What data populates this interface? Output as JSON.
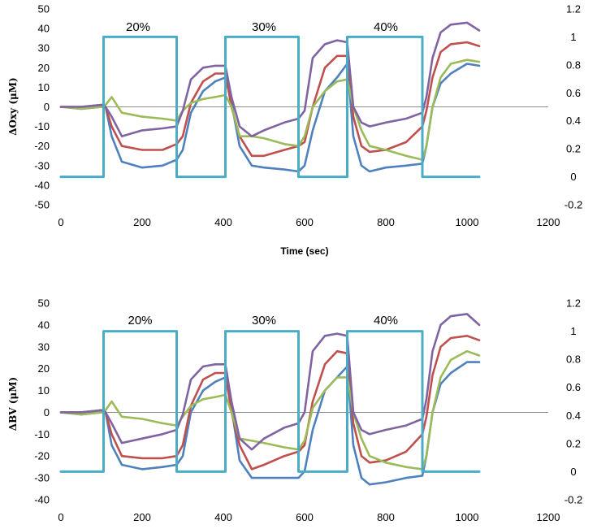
{
  "chart_data": [
    {
      "type": "line",
      "ylabel": "ΔOxy (μM)",
      "xlabel": "Time (sec)",
      "xlim": [
        0,
        1200
      ],
      "xticks": [
        0,
        200,
        400,
        600,
        800,
        1000,
        1200
      ],
      "ylim": [
        -50,
        50
      ],
      "yticks": [
        -50,
        -40,
        -30,
        -20,
        -10,
        0,
        10,
        20,
        30,
        40,
        50
      ],
      "y2lim": [
        -0.2,
        1.2
      ],
      "y2ticks": [
        -0.2,
        0,
        0.2,
        0.4,
        0.6,
        0.8,
        1,
        1.2
      ],
      "y2_tick_labels": [
        "-0.2",
        "0",
        "0.2",
        "0.4",
        "0.6",
        "0.8",
        "1",
        "1.2"
      ],
      "grid": false,
      "annotations": [
        "20%",
        "30%",
        "40%"
      ],
      "annotation_x": [
        190,
        500,
        800
      ],
      "series": [
        {
          "color": "#4e81bd",
          "axis": "left",
          "x": [
            0,
            50,
            100,
            110,
            125,
            150,
            200,
            250,
            285,
            300,
            320,
            350,
            380,
            405,
            420,
            440,
            470,
            500,
            550,
            585,
            600,
            620,
            650,
            680,
            705,
            720,
            740,
            760,
            800,
            850,
            890,
            900,
            915,
            935,
            960,
            1000,
            1030
          ],
          "y": [
            0,
            -1,
            0,
            0,
            -15,
            -28,
            -31,
            -30,
            -27,
            -22,
            -3,
            8,
            13,
            15,
            2,
            -20,
            -30,
            -31,
            -32,
            -33,
            -30,
            -12,
            8,
            15,
            22,
            -15,
            -30,
            -33,
            -31,
            -30,
            -29,
            -20,
            0,
            12,
            17,
            22,
            21
          ]
        },
        {
          "color": "#c0504d",
          "axis": "left",
          "x": [
            0,
            50,
            100,
            110,
            125,
            150,
            200,
            250,
            285,
            300,
            320,
            350,
            380,
            405,
            420,
            440,
            470,
            500,
            550,
            585,
            600,
            620,
            650,
            680,
            705,
            720,
            740,
            760,
            800,
            850,
            890,
            900,
            915,
            935,
            960,
            1000,
            1030
          ],
          "y": [
            0,
            0,
            1,
            0,
            -10,
            -20,
            -22,
            -22,
            -19,
            -15,
            2,
            13,
            17,
            17,
            0,
            -15,
            -25,
            -25,
            -22,
            -20,
            -18,
            0,
            20,
            26,
            26,
            -5,
            -20,
            -23,
            -22,
            -18,
            -10,
            -2,
            15,
            28,
            32,
            33,
            31
          ]
        },
        {
          "color": "#9bbb59",
          "axis": "left",
          "x": [
            0,
            50,
            100,
            110,
            125,
            150,
            200,
            250,
            285,
            300,
            320,
            350,
            380,
            405,
            420,
            440,
            470,
            500,
            550,
            585,
            600,
            620,
            650,
            680,
            705,
            720,
            740,
            760,
            800,
            850,
            890,
            900,
            915,
            935,
            960,
            1000,
            1030
          ],
          "y": [
            0,
            -1,
            0,
            1,
            5,
            -3,
            -5,
            -6,
            -7,
            -2,
            2,
            4,
            5,
            6,
            0,
            -15,
            -15,
            -16,
            -19,
            -20,
            -15,
            0,
            8,
            13,
            14,
            0,
            -12,
            -20,
            -22,
            -25,
            -27,
            -20,
            0,
            15,
            22,
            24,
            23
          ]
        },
        {
          "color": "#8064a2",
          "axis": "left",
          "x": [
            0,
            50,
            100,
            110,
            125,
            150,
            200,
            250,
            285,
            300,
            320,
            350,
            380,
            405,
            420,
            440,
            470,
            500,
            550,
            585,
            600,
            620,
            650,
            680,
            705,
            720,
            740,
            760,
            800,
            850,
            890,
            900,
            915,
            935,
            960,
            1000,
            1030
          ],
          "y": [
            0,
            0,
            1,
            0,
            -5,
            -15,
            -12,
            -11,
            -10,
            -2,
            14,
            20,
            21,
            21,
            5,
            -10,
            -15,
            -12,
            -8,
            -6,
            -2,
            25,
            32,
            34,
            33,
            0,
            -8,
            -10,
            -8,
            -6,
            -3,
            5,
            25,
            38,
            42,
            43,
            39
          ]
        },
        {
          "color": "#4bacc6",
          "axis": "right",
          "x": [
            0,
            105,
            105,
            285,
            285,
            405,
            405,
            585,
            585,
            705,
            705,
            890,
            890,
            1030
          ],
          "y": [
            0,
            0,
            1,
            1,
            0,
            0,
            1,
            1,
            0,
            0,
            1,
            1,
            0,
            0
          ]
        }
      ]
    },
    {
      "type": "line",
      "ylabel": "ΔBV (μM)",
      "xlim": [
        0,
        1200
      ],
      "xticks": [
        0,
        200,
        400,
        600,
        800,
        1000,
        1200
      ],
      "ylim": [
        -40,
        50
      ],
      "yticks": [
        -40,
        -30,
        -20,
        -10,
        0,
        10,
        20,
        30,
        40,
        50
      ],
      "y2lim": [
        -0.2,
        1.2
      ],
      "y2ticks": [
        -0.2,
        0,
        0.2,
        0.4,
        0.6,
        0.8,
        1,
        1.2
      ],
      "y2_tick_labels": [
        "-0.2",
        "0",
        "0.2",
        "0.4",
        "0.6",
        "0.8",
        "1",
        "1.2"
      ],
      "grid": false,
      "annotations": [
        "20%",
        "30%",
        "40%"
      ],
      "annotation_x": [
        195,
        500,
        800
      ],
      "series": [
        {
          "color": "#4e81bd",
          "axis": "left",
          "x": [
            0,
            50,
            100,
            110,
            125,
            150,
            200,
            250,
            285,
            300,
            320,
            350,
            380,
            405,
            420,
            440,
            470,
            500,
            550,
            585,
            600,
            620,
            650,
            680,
            705,
            720,
            740,
            760,
            800,
            850,
            890,
            900,
            915,
            935,
            960,
            1000,
            1030
          ],
          "y": [
            0,
            -1,
            0,
            0,
            -15,
            -24,
            -26,
            -25,
            -24,
            -20,
            0,
            10,
            14,
            16,
            2,
            -22,
            -30,
            -30,
            -30,
            -30,
            -27,
            -8,
            10,
            16,
            21,
            -15,
            -30,
            -33,
            -32,
            -30,
            -29,
            -20,
            0,
            13,
            18,
            23,
            23
          ]
        },
        {
          "color": "#c0504d",
          "axis": "left",
          "x": [
            0,
            50,
            100,
            110,
            125,
            150,
            200,
            250,
            285,
            300,
            320,
            350,
            380,
            405,
            420,
            440,
            470,
            500,
            550,
            585,
            600,
            620,
            650,
            680,
            705,
            720,
            740,
            760,
            800,
            850,
            890,
            900,
            915,
            935,
            960,
            1000,
            1030
          ],
          "y": [
            0,
            0,
            1,
            0,
            -10,
            -20,
            -21,
            -21,
            -20,
            -15,
            3,
            15,
            18,
            18,
            0,
            -15,
            -26,
            -24,
            -20,
            -18,
            -15,
            5,
            22,
            28,
            27,
            -5,
            -20,
            -23,
            -22,
            -18,
            -10,
            -2,
            17,
            30,
            34,
            35,
            33
          ]
        },
        {
          "color": "#9bbb59",
          "axis": "left",
          "x": [
            0,
            50,
            100,
            110,
            125,
            150,
            200,
            250,
            285,
            300,
            320,
            350,
            380,
            405,
            420,
            440,
            470,
            500,
            550,
            585,
            600,
            620,
            650,
            680,
            705,
            720,
            740,
            760,
            800,
            850,
            890,
            900,
            915,
            935,
            960,
            1000,
            1030
          ],
          "y": [
            0,
            -1,
            0,
            1,
            5,
            -2,
            -3,
            -5,
            -6,
            -2,
            3,
            6,
            7,
            8,
            0,
            -12,
            -13,
            -14,
            -16,
            -17,
            -13,
            2,
            10,
            16,
            16,
            0,
            -12,
            -20,
            -23,
            -25,
            -26,
            -20,
            0,
            16,
            24,
            28,
            26
          ]
        },
        {
          "color": "#8064a2",
          "axis": "left",
          "x": [
            0,
            50,
            100,
            110,
            125,
            150,
            200,
            250,
            285,
            300,
            320,
            350,
            380,
            405,
            420,
            440,
            470,
            500,
            550,
            585,
            600,
            620,
            650,
            680,
            705,
            720,
            740,
            760,
            800,
            850,
            890,
            900,
            915,
            935,
            960,
            1000,
            1030
          ],
          "y": [
            0,
            0,
            1,
            0,
            -5,
            -14,
            -12,
            -10,
            -8,
            -1,
            15,
            21,
            22,
            22,
            5,
            -12,
            -17,
            -12,
            -7,
            -5,
            0,
            28,
            35,
            36,
            35,
            0,
            -8,
            -10,
            -8,
            -6,
            -3,
            6,
            28,
            40,
            44,
            45,
            40
          ]
        },
        {
          "color": "#4bacc6",
          "axis": "right",
          "x": [
            0,
            105,
            105,
            285,
            285,
            405,
            405,
            585,
            585,
            705,
            705,
            890,
            890,
            1030
          ],
          "y": [
            0,
            0,
            1,
            1,
            0,
            0,
            1,
            1,
            0,
            0,
            1,
            1,
            0,
            0
          ]
        }
      ]
    }
  ]
}
